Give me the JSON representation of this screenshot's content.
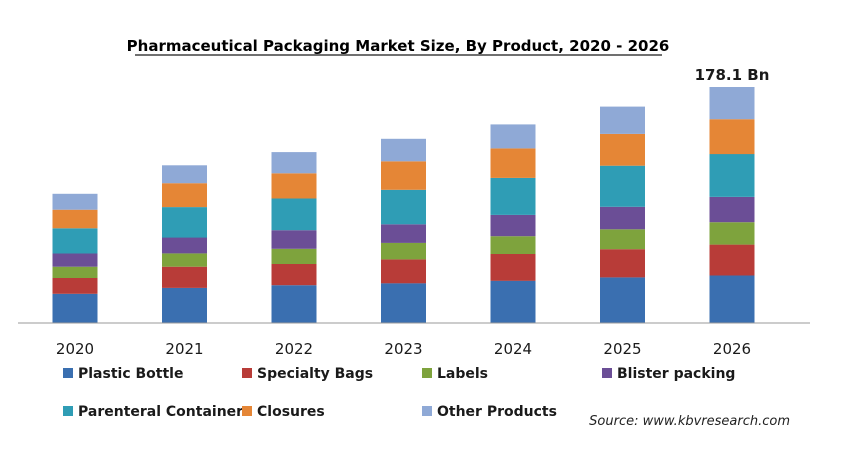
{
  "chart_data": {
    "type": "bar",
    "stacked": true,
    "title": "Pharmaceutical Packaging Market Size, By Product, 2020 - 2026",
    "xlabel": "",
    "ylabel": "",
    "categories": [
      "2020",
      "2021",
      "2022",
      "2023",
      "2024",
      "2025",
      "2026"
    ],
    "ylim": [
      0,
      178.1
    ],
    "grid": false,
    "legend": "bottom",
    "series": [
      {
        "name": "Plastic Bottle",
        "color": "#3a6fb0",
        "values": [
          22.0,
          26.5,
          28.5,
          30.0,
          31.9,
          34.4,
          35.9
        ]
      },
      {
        "name": "Specialty Bags",
        "color": "#b83c38",
        "values": [
          12.0,
          16.0,
          16.0,
          18.0,
          20.2,
          21.3,
          23.3
        ]
      },
      {
        "name": "Labels",
        "color": "#7ea33d",
        "values": [
          8.5,
          10.0,
          11.5,
          12.5,
          13.4,
          15.0,
          16.9
        ]
      },
      {
        "name": "Blister packing",
        "color": "#6b4e96",
        "values": [
          10.0,
          12.0,
          14.0,
          14.0,
          16.1,
          17.0,
          19.0
        ]
      },
      {
        "name": "Parenteral Container",
        "color": "#2f9db5",
        "values": [
          19.0,
          23.0,
          24.0,
          26.0,
          27.9,
          31.0,
          32.4
        ]
      },
      {
        "name": "Closures",
        "color": "#e58636",
        "values": [
          14.0,
          18.0,
          19.0,
          21.5,
          22.3,
          24.0,
          26.3
        ]
      },
      {
        "name": "Other Products",
        "color": "#8fa9d6",
        "values": [
          12.0,
          13.5,
          16.0,
          17.0,
          18.1,
          20.6,
          24.3
        ]
      }
    ],
    "annotation": {
      "category": "2026",
      "text": "178.1 Bn"
    }
  },
  "source": "Source: www.kbvresearch.com"
}
